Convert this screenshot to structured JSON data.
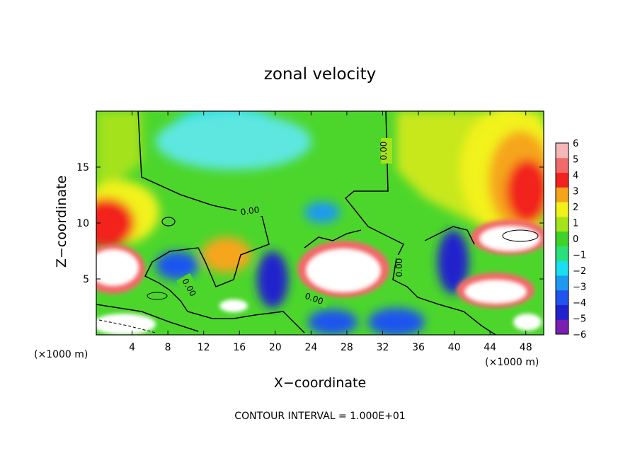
{
  "chart_data": {
    "type": "heatmap",
    "title": "zonal velocity",
    "xlabel": "X−coordinate",
    "ylabel": "Z−coordinate",
    "x_unit_left": "(×1000 m)",
    "x_unit_right": "(×1000 m)",
    "footer": "CONTOUR INTERVAL = 1.000E+01",
    "xlim": [
      0,
      50
    ],
    "ylim": [
      0,
      20
    ],
    "x_ticks": [
      4,
      8,
      12,
      16,
      20,
      24,
      28,
      32,
      36,
      40,
      44,
      48
    ],
    "x_tick_labels": [
      "4",
      "8",
      "12",
      "16",
      "20",
      "24",
      "28",
      "32",
      "36",
      "40",
      "44",
      "48"
    ],
    "y_ticks": [
      5,
      10,
      15
    ],
    "y_tick_labels": [
      "5",
      "10",
      "15"
    ],
    "colorbar": {
      "min": -6,
      "max": 6,
      "ticks": [
        6,
        5,
        4,
        3,
        2,
        1,
        0,
        -1,
        -2,
        -3,
        -4,
        -5,
        -6
      ],
      "tick_labels": [
        "6",
        "5",
        "4",
        "3",
        "2",
        "1",
        "0",
        "−1",
        "−2",
        "−3",
        "−4",
        "−5",
        "−6"
      ],
      "colors": [
        "#7a1fb0",
        "#2222cc",
        "#1f55ee",
        "#1e9af0",
        "#19dff0",
        "#29e07a",
        "#3ed22a",
        "#a6e41a",
        "#f2f21a",
        "#f5a51a",
        "#f2231e",
        "#f26a6a",
        "#f5b8b8"
      ]
    },
    "contour_labels": [
      "0.00",
      "0.00",
      "0.00",
      "0.00",
      "0.00"
    ],
    "grid": false
  }
}
